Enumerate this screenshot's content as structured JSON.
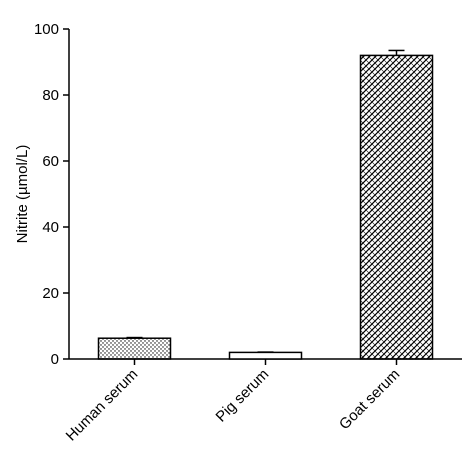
{
  "chart_data": {
    "type": "bar",
    "title": "",
    "xlabel": "",
    "ylabel": "Nitrite (µmol/L)",
    "ylim": [
      0,
      100
    ],
    "yticks": [
      0,
      20,
      40,
      60,
      80,
      100
    ],
    "categories": [
      "Human serum",
      "Pig serum",
      "Goat serum"
    ],
    "values": [
      6.3,
      2.0,
      92.0
    ],
    "errors": [
      0.2,
      0.1,
      1.5
    ],
    "patterns": [
      "dots",
      "none",
      "crosshatch"
    ],
    "grid": false,
    "legend": "none",
    "colors": {
      "bar_fill": "#ffffff",
      "bar_stroke": "#000000",
      "pattern": "#000000"
    }
  }
}
